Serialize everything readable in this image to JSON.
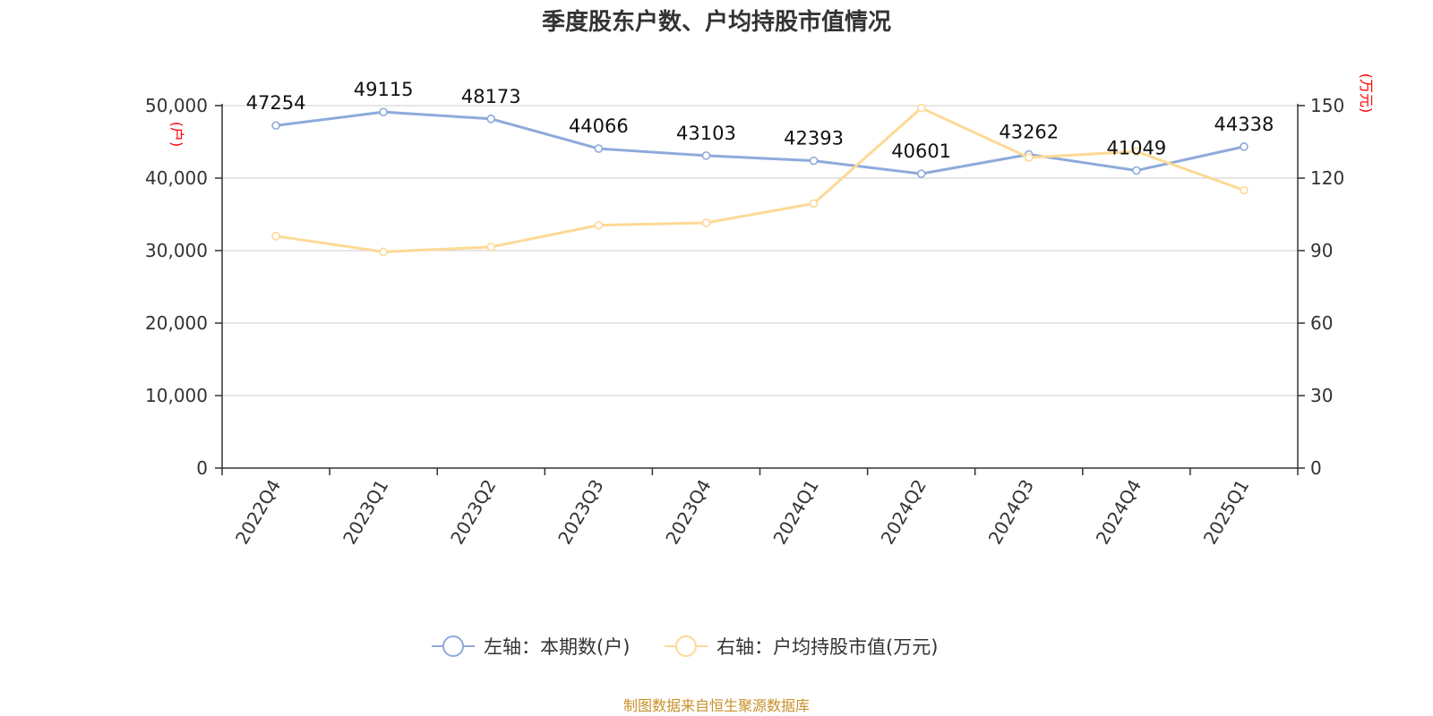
{
  "colors": {
    "series_left": "#8eaadb",
    "series_right": "#fdd996",
    "grid": "#cccccc",
    "axis": "#333333",
    "unit": "#ff0000",
    "source": "#c8902a"
  },
  "footer": {
    "source": "制图数据来自恒生聚源数据库"
  },
  "chart_data": {
    "type": "line",
    "title": "季度股东户数、户均持股市值情况",
    "categories": [
      "2022Q4",
      "2023Q1",
      "2023Q2",
      "2023Q3",
      "2023Q4",
      "2024Q1",
      "2024Q2",
      "2024Q3",
      "2024Q4",
      "2025Q1"
    ],
    "y_left": {
      "unit": "(户)",
      "range": [
        0,
        50000
      ],
      "ticks": [
        0,
        10000,
        20000,
        30000,
        40000,
        50000
      ],
      "tick_labels": [
        "0",
        "10,000",
        "20,000",
        "30,000",
        "40,000",
        "50,000"
      ]
    },
    "y_right": {
      "unit": "(万元)",
      "range": [
        0,
        150
      ],
      "ticks": [
        0,
        30,
        60,
        90,
        120,
        150
      ],
      "tick_labels": [
        "0",
        "30",
        "60",
        "90",
        "120",
        "150"
      ]
    },
    "grid": true,
    "legend_position": "bottom",
    "series": [
      {
        "name": "左轴：本期数(户)",
        "axis": "left",
        "values": [
          47254,
          49115,
          48173,
          44066,
          43103,
          42393,
          40601,
          43262,
          41049,
          44338
        ],
        "labels": [
          "47254",
          "49115",
          "48173",
          "44066",
          "43103",
          "42393",
          "40601",
          "43262",
          "41049",
          "44338"
        ]
      },
      {
        "name": "右轴：户均持股市值(万元)",
        "axis": "right",
        "values": [
          96,
          89.5,
          91.5,
          100.5,
          101.5,
          109.5,
          149,
          128.5,
          131,
          115
        ]
      }
    ]
  }
}
